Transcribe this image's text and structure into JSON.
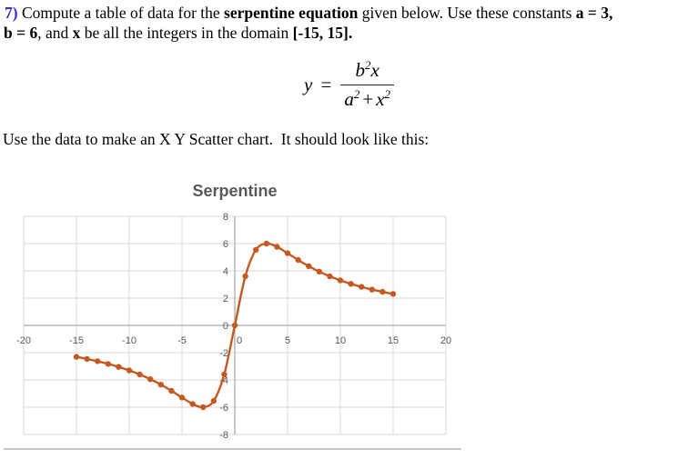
{
  "problem": {
    "line1": [
      "7) ",
      "Compute a table of data for the ",
      "serpentine equation",
      " given below. Use these constants ",
      "a = 3,"
    ],
    "line2": [
      "b = 6",
      ", and ",
      "x",
      " be all the integers in the domain ",
      "[-15, 15]."
    ]
  },
  "formula": {
    "lhs": "y",
    "equals": "=",
    "num_base": "b",
    "num_exp": "2",
    "num_var": "x",
    "den_base": "a",
    "den_exp": "2",
    "den_plus": "+",
    "den_var": "x",
    "den_exp2": "2"
  },
  "instruction": "Use the data to make an X Y Scatter chart.  It should look like this:",
  "colors": {
    "problem_number_blue": "#3333CC",
    "separator_gray": "#C6C6C6"
  },
  "chart_data": {
    "type": "scatter",
    "title": "Serpentine",
    "x": [
      -15,
      -14,
      -13,
      -12,
      -11,
      -10,
      -9,
      -8,
      -7,
      -6,
      -5,
      -4,
      -3,
      -2,
      -1,
      0,
      1,
      2,
      3,
      4,
      5,
      6,
      7,
      8,
      9,
      10,
      11,
      12,
      13,
      14,
      15
    ],
    "y": [
      -2.308,
      -2.459,
      -2.629,
      -2.824,
      -3.046,
      -3.303,
      -3.6,
      -3.945,
      -4.345,
      -4.8,
      -5.294,
      -5.76,
      -6,
      -5.538,
      -3.6,
      0,
      3.6,
      5.538,
      6,
      5.76,
      5.294,
      4.8,
      4.345,
      3.945,
      3.6,
      3.303,
      3.046,
      2.824,
      2.629,
      2.459,
      2.308
    ],
    "xlim": [
      -20,
      20
    ],
    "ylim": [
      -8,
      8
    ],
    "xticks": [
      -20,
      -15,
      -10,
      -5,
      0,
      5,
      10,
      15,
      20
    ],
    "yticks": [
      -8,
      -6,
      -4,
      -2,
      0,
      2,
      4,
      6,
      8
    ],
    "grid": true,
    "legend": false,
    "line_smooth": true,
    "marker": "circle",
    "colors": {
      "series": "#C45A21",
      "gridline": "#D9D9D9",
      "axis": "#ABABAB",
      "tick_label": "#595959",
      "title": "#595959"
    }
  }
}
